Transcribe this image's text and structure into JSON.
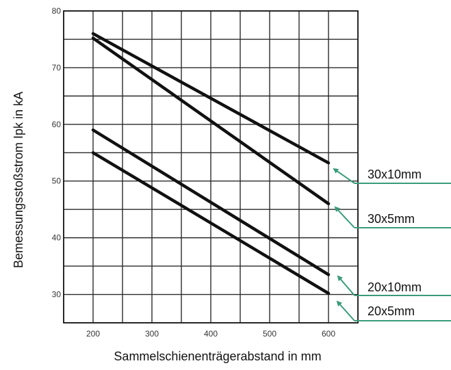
{
  "chart_data": {
    "type": "line",
    "xlabel": "Sammelschienenträgerabstand in mm",
    "ylabel": "Bemessungsstoßstrom Ipk in kA",
    "xlim": [
      150,
      650
    ],
    "ylim": [
      25,
      80
    ],
    "x_ticks": [
      200,
      300,
      400,
      500,
      600
    ],
    "y_ticks": [
      30,
      40,
      50,
      60,
      70,
      80
    ],
    "x_tick_labels": [
      "200",
      "300",
      "400",
      "500",
      "600"
    ],
    "y_tick_labels": [
      "30",
      "40",
      "50",
      "60",
      "70",
      "80"
    ],
    "grid": true,
    "series": [
      {
        "name": "30x10mm",
        "x": [
          200,
          600
        ],
        "values": [
          76,
          53.2
        ]
      },
      {
        "name": "30x5mm",
        "x": [
          200,
          600
        ],
        "values": [
          75.2,
          46
        ]
      },
      {
        "name": "20x10mm",
        "x": [
          200,
          600
        ],
        "values": [
          59,
          33.5
        ]
      },
      {
        "name": "20x5mm",
        "x": [
          200,
          600
        ],
        "values": [
          55,
          30.2
        ]
      }
    ],
    "line_color": "#111111",
    "callout_color": "#3a9a7a"
  }
}
